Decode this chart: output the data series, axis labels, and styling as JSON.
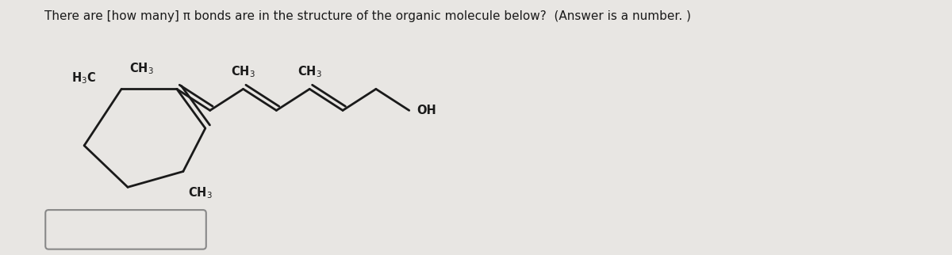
{
  "bg_color": "#e8e6e3",
  "line_color": "#1a1a1a",
  "text_color": "#1a1a1a",
  "lw": 2.0,
  "title": "There are [how many] π bonds are in the structure of the organic molecule below?  (Answer is a number. )",
  "title_fontsize": 11.0,
  "mol_fontsize": 10.5
}
